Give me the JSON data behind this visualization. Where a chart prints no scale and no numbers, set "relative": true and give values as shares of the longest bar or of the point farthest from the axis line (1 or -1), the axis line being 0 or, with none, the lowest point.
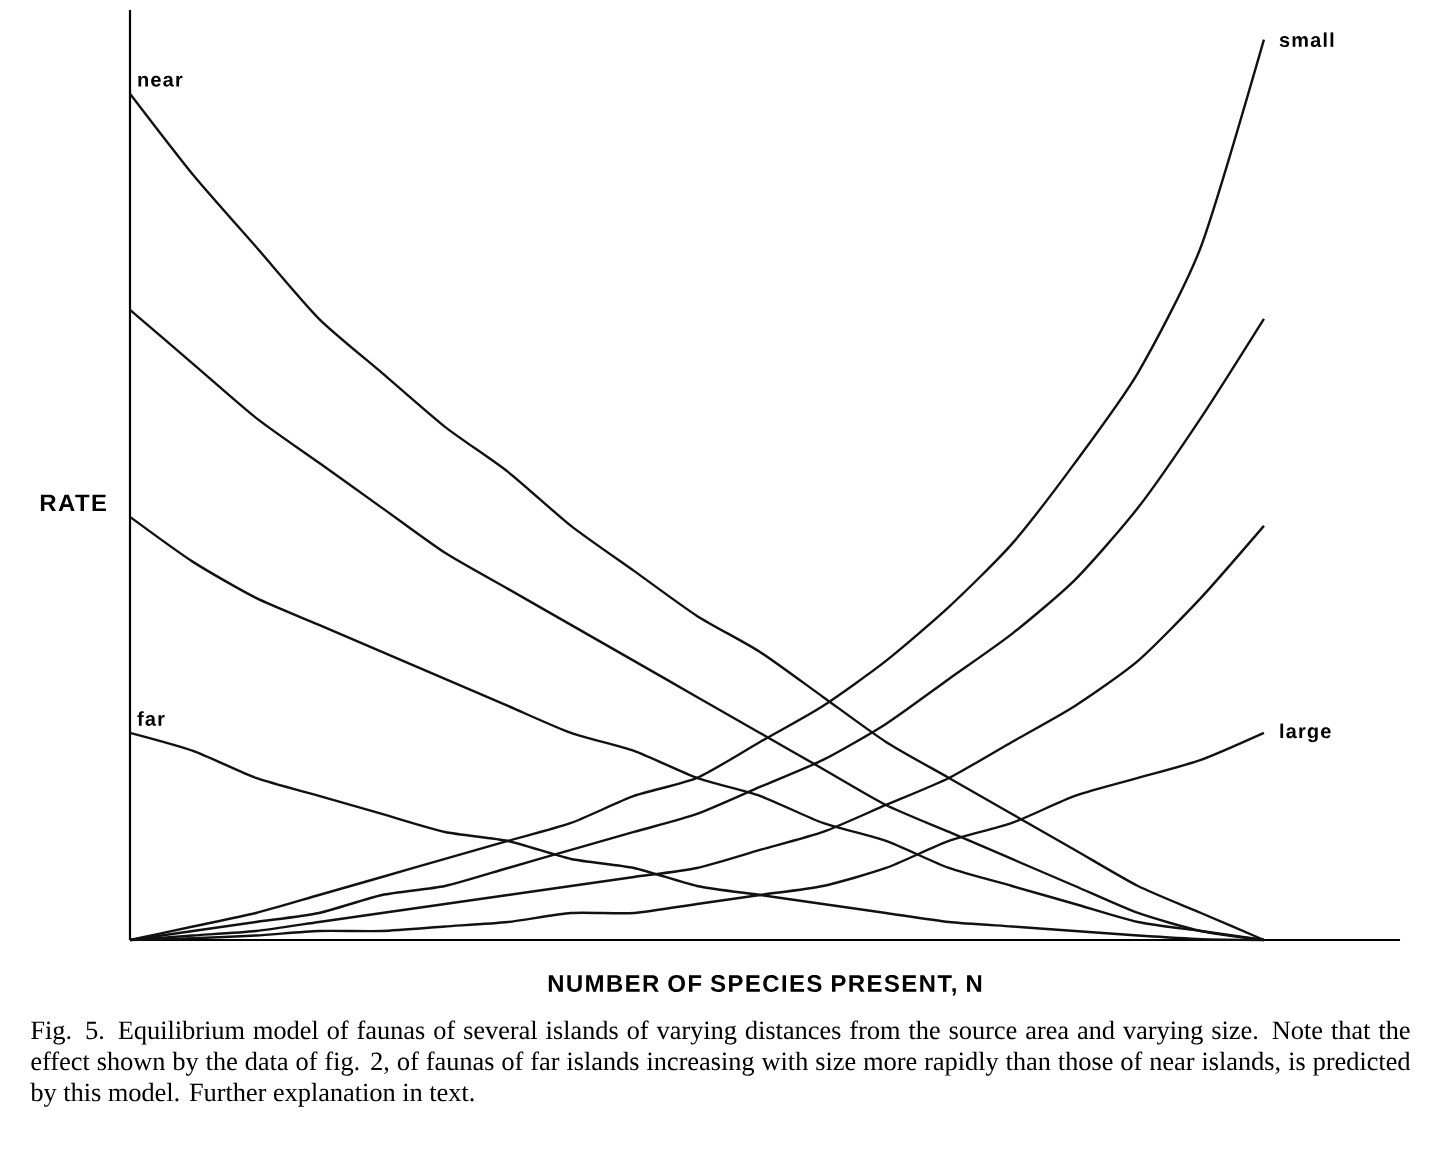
{
  "chart_data": {
    "type": "line",
    "relative": true,
    "xlabel": "NUMBER OF SPECIES PRESENT, N",
    "ylabel": "RATE",
    "categories": [
      null,
      null,
      null,
      null,
      null,
      null,
      null,
      null,
      null,
      null,
      null,
      null,
      null,
      null,
      null,
      null,
      null,
      null,
      null,
      null,
      null
    ],
    "series": [
      {
        "name": "near",
        "color": "#111111",
        "values": [
          0.94,
          0.85,
          0.77,
          0.69,
          0.63,
          0.57,
          0.52,
          0.46,
          0.41,
          0.36,
          0.32,
          0.27,
          0.22,
          0.18,
          0.14,
          0.1,
          0.06,
          0.03,
          0,
          null,
          null
        ]
      },
      {
        "color": "#111111",
        "values": [
          0.7,
          0.64,
          0.58,
          0.53,
          0.48,
          0.43,
          0.39,
          0.35,
          0.31,
          0.27,
          0.23,
          0.19,
          0.15,
          0.12,
          0.09,
          0.06,
          0.03,
          0.01,
          0,
          null,
          null
        ]
      },
      {
        "color": "#111111",
        "values": [
          0.47,
          0.42,
          0.38,
          0.35,
          0.32,
          0.29,
          0.26,
          0.23,
          0.21,
          0.18,
          0.16,
          0.13,
          0.11,
          0.08,
          0.06,
          0.04,
          0.02,
          0.01,
          0,
          null,
          null
        ]
      },
      {
        "name": "far",
        "color": "#111111",
        "values": [
          0.23,
          0.21,
          0.18,
          0.16,
          0.14,
          0.12,
          0.11,
          0.09,
          0.08,
          0.06,
          0.05,
          0.04,
          0.03,
          0.02,
          0.015,
          0.01,
          0.005,
          0.001,
          0,
          null,
          null
        ]
      },
      {
        "name": "small",
        "color": "#111111",
        "values": [
          0,
          0.015,
          0.03,
          0.05,
          0.07,
          0.09,
          0.11,
          0.13,
          0.16,
          0.18,
          0.22,
          0.26,
          0.31,
          0.37,
          0.44,
          0.53,
          0.63,
          0.77,
          1,
          null,
          null
        ]
      },
      {
        "color": "#111111",
        "values": [
          0,
          0.01,
          0.02,
          0.03,
          0.05,
          0.06,
          0.08,
          0.1,
          0.12,
          0.14,
          0.17,
          0.2,
          0.24,
          0.29,
          0.34,
          0.4,
          0.48,
          0.58,
          0.69,
          null,
          null
        ]
      },
      {
        "color": "#111111",
        "values": [
          0,
          0.005,
          0.01,
          0.02,
          0.03,
          0.04,
          0.05,
          0.06,
          0.07,
          0.08,
          0.1,
          0.12,
          0.15,
          0.18,
          0.22,
          0.26,
          0.31,
          0.38,
          0.46,
          null,
          null
        ]
      },
      {
        "name": "large",
        "color": "#111111",
        "values": [
          0,
          0.002,
          0.005,
          0.01,
          0.01,
          0.015,
          0.02,
          0.03,
          0.03,
          0.04,
          0.05,
          0.06,
          0.08,
          0.11,
          0.13,
          0.16,
          0.18,
          0.2,
          0.23,
          null,
          null
        ]
      }
    ],
    "annotations": [
      "Fig. 5.  Equilibrium model of faunas of several islands of varying distances from the source area and varying size. Note that the effect shown by the data of fig. 2, of faunas of far islands increasing with size more rapidly than those of near islands, is predicted by this model. Further explanation in text."
    ]
  }
}
